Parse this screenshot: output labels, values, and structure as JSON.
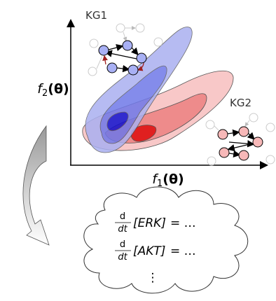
{
  "graphs": [
    {
      "label": "KG1"
    },
    {
      "label": "KG2"
    }
  ],
  "axes": {
    "x_label": {
      "base": "f",
      "sub": "1",
      "arg": "(θ)"
    },
    "y_label": {
      "base": "f",
      "sub": "2",
      "arg": "(θ)"
    }
  },
  "equations": [
    {
      "numerator": "d",
      "denominator": "dt",
      "variable": "[ERK]",
      "rhs": "= …"
    },
    {
      "numerator": "d",
      "denominator": "dt",
      "variable": "[AKT]",
      "rhs": "= …"
    }
  ],
  "ellipsis": "⋮"
}
